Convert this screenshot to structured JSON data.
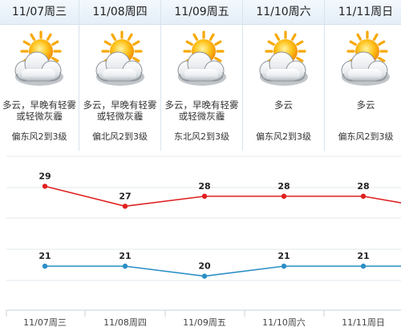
{
  "days": [
    {
      "date": "11/07周三",
      "condition": "多云，早晚有轻雾或轻微灰霾",
      "condition_line1": "多云，早晚有轻雾",
      "condition_line2": "或轻微灰霾",
      "wind": "偏东风2到3级",
      "icon": "partly-cloudy-sun-icon"
    },
    {
      "date": "11/08周四",
      "condition": "多云，早晚有轻雾或轻微灰霾",
      "condition_line1": "多云，早晚有轻雾",
      "condition_line2": "或轻微灰霾",
      "wind": "偏北风2到3级",
      "icon": "partly-cloudy-sun-icon"
    },
    {
      "date": "11/09周五",
      "condition": "多云，早晚有轻雾或轻微灰霾",
      "condition_line1": "多云，早晚有轻雾",
      "condition_line2": "或轻微灰霾",
      "wind": "东北风2到3级",
      "icon": "partly-cloudy-sun-icon"
    },
    {
      "date": "11/10周六",
      "condition": "多云",
      "condition_line1": "多云",
      "condition_line2": "",
      "wind": "偏东风2到3级",
      "icon": "partly-cloudy-sun-icon"
    },
    {
      "date": "11/11周日",
      "condition": "多云",
      "condition_line1": "多云",
      "condition_line2": "",
      "wind": "偏东风2到3级",
      "icon": "partly-cloudy-sun-icon"
    }
  ],
  "colors": {
    "high_line": "#e02020",
    "low_line": "#2a8fc6",
    "grid": "#e3e8ee",
    "header_bg": "#e8f0f8"
  },
  "chart_data": {
    "type": "line",
    "categories": [
      "11/07周三",
      "11/08周四",
      "11/09周五",
      "11/10周六",
      "11/11周日"
    ],
    "series": [
      {
        "values": [
          29,
          27,
          28,
          28,
          28
        ],
        "color": "#e02020"
      },
      {
        "values": [
          21,
          21,
          20,
          21,
          21
        ],
        "color": "#2a8fc6"
      }
    ],
    "title": "",
    "xlabel": "",
    "ylabel": "",
    "ylim": [
      17,
      32
    ],
    "grid": true,
    "legend": "none"
  }
}
